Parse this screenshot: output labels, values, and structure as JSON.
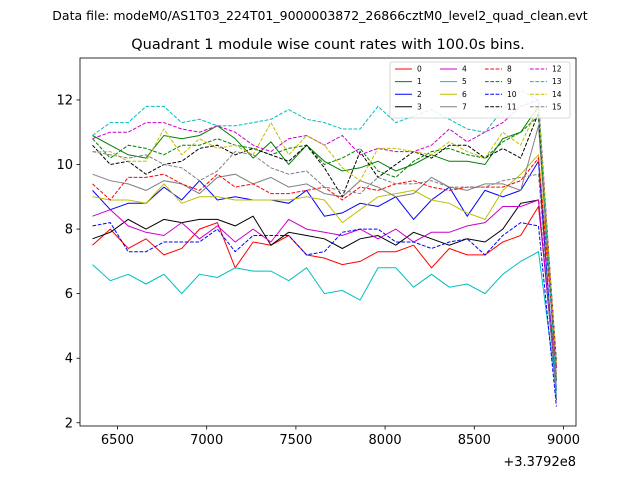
{
  "chart_data": {
    "type": "line",
    "suptitle": "Data file: modeM0/AS1T03_224T01_9000003872_26866cztM0_level2_quad_clean.evt",
    "title": "Quadrant 1 module wise count rates with 100.0s bins.",
    "xlabel": "",
    "ylabel": "",
    "x_offset_label": "+3.3792e8",
    "xlim": [
      6290,
      9070
    ],
    "ylim": [
      1.9,
      13.3
    ],
    "xticks": [
      6500,
      7000,
      7500,
      8000,
      8500,
      9000
    ],
    "yticks": [
      2,
      4,
      6,
      8,
      10,
      12
    ],
    "legend_position": "top-right",
    "x": [
      6360,
      6460,
      6560,
      6660,
      6760,
      6860,
      6960,
      7060,
      7160,
      7260,
      7360,
      7460,
      7560,
      7660,
      7760,
      7860,
      7960,
      8060,
      8160,
      8260,
      8360,
      8460,
      8560,
      8660,
      8760,
      8860,
      8960
    ],
    "series": [
      {
        "name": "0",
        "color": "#ff0000",
        "dash": "solid",
        "values": [
          7.5,
          8.0,
          7.4,
          7.7,
          7.2,
          7.4,
          8.0,
          8.2,
          6.8,
          7.6,
          7.5,
          7.8,
          7.2,
          7.1,
          6.9,
          7.0,
          7.3,
          7.3,
          7.5,
          6.8,
          7.4,
          7.2,
          7.2,
          7.6,
          7.8,
          8.7,
          3.5
        ]
      },
      {
        "name": "1",
        "color": "#008000",
        "dash": "solid",
        "values": [
          10.9,
          10.6,
          10.3,
          10.2,
          10.9,
          10.8,
          10.9,
          11.2,
          10.8,
          10.2,
          10.7,
          10.0,
          10.6,
          10.1,
          9.8,
          9.9,
          10.1,
          9.8,
          10.0,
          10.3,
          10.1,
          10.1,
          10.0,
          10.8,
          11.0,
          11.8,
          3.3
        ]
      },
      {
        "name": "2",
        "color": "#0000ff",
        "dash": "solid",
        "values": [
          9.2,
          8.6,
          8.8,
          8.8,
          9.3,
          8.9,
          9.5,
          8.9,
          9.0,
          8.9,
          8.9,
          8.8,
          9.2,
          8.4,
          8.5,
          8.8,
          8.7,
          9.0,
          8.3,
          8.9,
          9.3,
          8.4,
          9.2,
          9.0,
          9.2,
          10.1,
          2.7
        ]
      },
      {
        "name": "3",
        "color": "#000000",
        "dash": "solid",
        "values": [
          7.7,
          7.9,
          8.3,
          8.0,
          8.3,
          8.2,
          8.3,
          8.3,
          8.1,
          8.4,
          7.5,
          7.9,
          7.8,
          7.7,
          7.4,
          7.7,
          7.8,
          7.5,
          7.9,
          7.7,
          7.5,
          7.7,
          7.6,
          8.0,
          8.8,
          8.9,
          3.0
        ]
      },
      {
        "name": "4",
        "color": "#cc00cc",
        "dash": "solid",
        "values": [
          8.4,
          8.6,
          8.1,
          7.9,
          7.8,
          8.2,
          7.7,
          8.1,
          7.6,
          8.0,
          7.6,
          8.3,
          8.0,
          7.9,
          7.8,
          8.0,
          7.7,
          8.0,
          7.6,
          7.9,
          7.9,
          8.1,
          8.2,
          8.7,
          8.7,
          8.9,
          3.1
        ]
      },
      {
        "name": "5",
        "color": "#00bfbf",
        "dash": "solid",
        "values": [
          6.9,
          6.4,
          6.6,
          6.3,
          6.6,
          6.0,
          6.6,
          6.5,
          6.8,
          6.7,
          6.7,
          6.4,
          6.8,
          6.0,
          6.1,
          5.8,
          6.8,
          6.8,
          6.2,
          6.6,
          6.2,
          6.3,
          6.0,
          6.6,
          7.0,
          7.3,
          3.0
        ]
      },
      {
        "name": "6",
        "color": "#bfbf00",
        "dash": "solid",
        "values": [
          9.0,
          8.9,
          8.9,
          8.8,
          9.4,
          8.8,
          9.0,
          9.0,
          8.9,
          8.9,
          8.9,
          8.9,
          9.0,
          8.9,
          8.2,
          8.6,
          9.0,
          9.1,
          9.2,
          8.9,
          8.8,
          8.5,
          8.3,
          9.2,
          9.7,
          10.3,
          3.8
        ]
      },
      {
        "name": "7",
        "color": "#808080",
        "dash": "solid",
        "values": [
          9.7,
          9.5,
          9.4,
          9.2,
          9.5,
          9.4,
          9.1,
          9.6,
          9.7,
          9.4,
          9.6,
          9.3,
          9.4,
          9.1,
          9.0,
          9.5,
          9.3,
          9.0,
          9.1,
          9.6,
          9.3,
          9.2,
          9.4,
          9.4,
          9.2,
          11.2,
          3.4
        ]
      },
      {
        "name": "8",
        "color": "#ff0000",
        "dash": "dashed",
        "values": [
          9.4,
          8.9,
          9.6,
          9.6,
          9.7,
          9.4,
          9.2,
          9.7,
          9.3,
          9.4,
          9.1,
          9.1,
          9.2,
          9.3,
          8.9,
          9.3,
          9.2,
          9.4,
          9.5,
          9.3,
          9.2,
          9.3,
          9.3,
          9.3,
          9.5,
          10.2,
          3.7
        ]
      },
      {
        "name": "9",
        "color": "#008000",
        "dash": "dashed",
        "values": [
          10.8,
          10.2,
          10.6,
          10.5,
          10.3,
          10.6,
          10.6,
          10.8,
          10.6,
          10.5,
          10.3,
          10.5,
          10.6,
          10.0,
          10.2,
          10.5,
          9.8,
          9.6,
          10.1,
          10.4,
          10.5,
          10.3,
          10.2,
          10.7,
          11.0,
          11.5,
          3.7
        ]
      },
      {
        "name": "10",
        "color": "#0000ff",
        "dash": "dashed",
        "values": [
          8.1,
          8.2,
          7.3,
          7.3,
          7.6,
          7.6,
          7.6,
          8.0,
          7.3,
          7.8,
          7.8,
          7.8,
          7.2,
          7.3,
          7.9,
          8.0,
          8.0,
          7.6,
          7.6,
          7.4,
          7.6,
          7.7,
          7.2,
          7.8,
          8.2,
          8.1,
          2.5
        ]
      },
      {
        "name": "11",
        "color": "#000000",
        "dash": "dashed",
        "values": [
          10.6,
          10.0,
          10.1,
          9.7,
          10.0,
          10.1,
          10.5,
          10.6,
          10.3,
          10.5,
          10.3,
          10.1,
          10.6,
          9.9,
          9.0,
          10.4,
          9.6,
          10.0,
          10.4,
          10.2,
          10.6,
          10.6,
          10.2,
          10.5,
          10.2,
          11.6,
          3.9
        ]
      },
      {
        "name": "12",
        "color": "#cc00cc",
        "dash": "dashed",
        "values": [
          10.8,
          11.0,
          11.0,
          11.3,
          11.3,
          11.1,
          11.0,
          11.2,
          11.0,
          10.6,
          10.4,
          10.8,
          10.9,
          10.6,
          10.9,
          10.3,
          10.5,
          10.4,
          10.4,
          10.6,
          11.1,
          10.7,
          11.0,
          11.3,
          11.8,
          12.0,
          3.7
        ]
      },
      {
        "name": "13",
        "color": "#00bfbf",
        "dash": "dashed",
        "values": [
          10.9,
          11.3,
          11.3,
          11.8,
          11.8,
          11.3,
          11.4,
          11.2,
          11.2,
          11.3,
          11.4,
          11.7,
          11.4,
          11.3,
          11.1,
          11.1,
          11.8,
          11.3,
          11.5,
          11.7,
          11.4,
          11.1,
          11.0,
          11.7,
          12.3,
          12.0,
          2.9
        ]
      },
      {
        "name": "14",
        "color": "#bfbf00",
        "dash": "dashed",
        "values": [
          10.4,
          10.4,
          10.1,
          10.1,
          11.1,
          10.3,
          10.8,
          10.5,
          10.6,
          10.3,
          11.3,
          10.3,
          10.9,
          10.6,
          9.9,
          9.5,
          10.5,
          10.5,
          10.4,
          10.3,
          10.7,
          10.4,
          10.2,
          11.0,
          10.6,
          11.8,
          3.8
        ]
      },
      {
        "name": "15",
        "color": "#808080",
        "dash": "dashed",
        "values": [
          10.4,
          10.3,
          10.2,
          10.3,
          10.0,
          9.9,
          9.5,
          9.8,
          10.4,
          10.3,
          9.9,
          9.7,
          9.8,
          9.3,
          9.2,
          9.1,
          9.6,
          9.4,
          9.4,
          9.5,
          9.3,
          9.3,
          9.3,
          9.5,
          9.6,
          9.7,
          2.7
        ]
      }
    ]
  }
}
